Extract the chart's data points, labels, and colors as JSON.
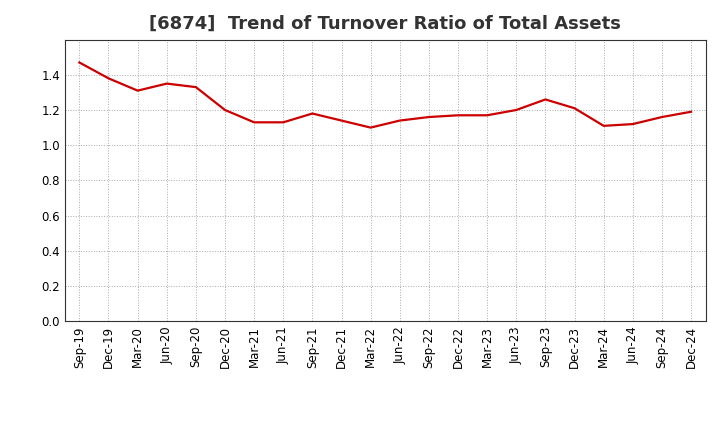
{
  "title": "[6874]  Trend of Turnover Ratio of Total Assets",
  "x_labels": [
    "Sep-19",
    "Dec-19",
    "Mar-20",
    "Jun-20",
    "Sep-20",
    "Dec-20",
    "Mar-21",
    "Jun-21",
    "Sep-21",
    "Dec-21",
    "Mar-22",
    "Jun-22",
    "Sep-22",
    "Dec-22",
    "Mar-23",
    "Jun-23",
    "Sep-23",
    "Dec-23",
    "Mar-24",
    "Jun-24",
    "Sep-24",
    "Dec-24"
  ],
  "y_values": [
    1.47,
    1.38,
    1.31,
    1.35,
    1.33,
    1.2,
    1.13,
    1.13,
    1.18,
    1.14,
    1.1,
    1.14,
    1.16,
    1.17,
    1.17,
    1.2,
    1.26,
    1.21,
    1.11,
    1.12,
    1.16,
    1.19
  ],
  "line_color": "#cc0000",
  "line_width": 1.6,
  "ylim": [
    0.0,
    1.6
  ],
  "yticks": [
    0.0,
    0.2,
    0.4,
    0.6,
    0.8,
    1.0,
    1.2,
    1.4
  ],
  "grid_color": "#aaaaaa",
  "background_color": "#ffffff",
  "title_fontsize": 13,
  "tick_fontsize": 8.5,
  "title_color": "#333333"
}
